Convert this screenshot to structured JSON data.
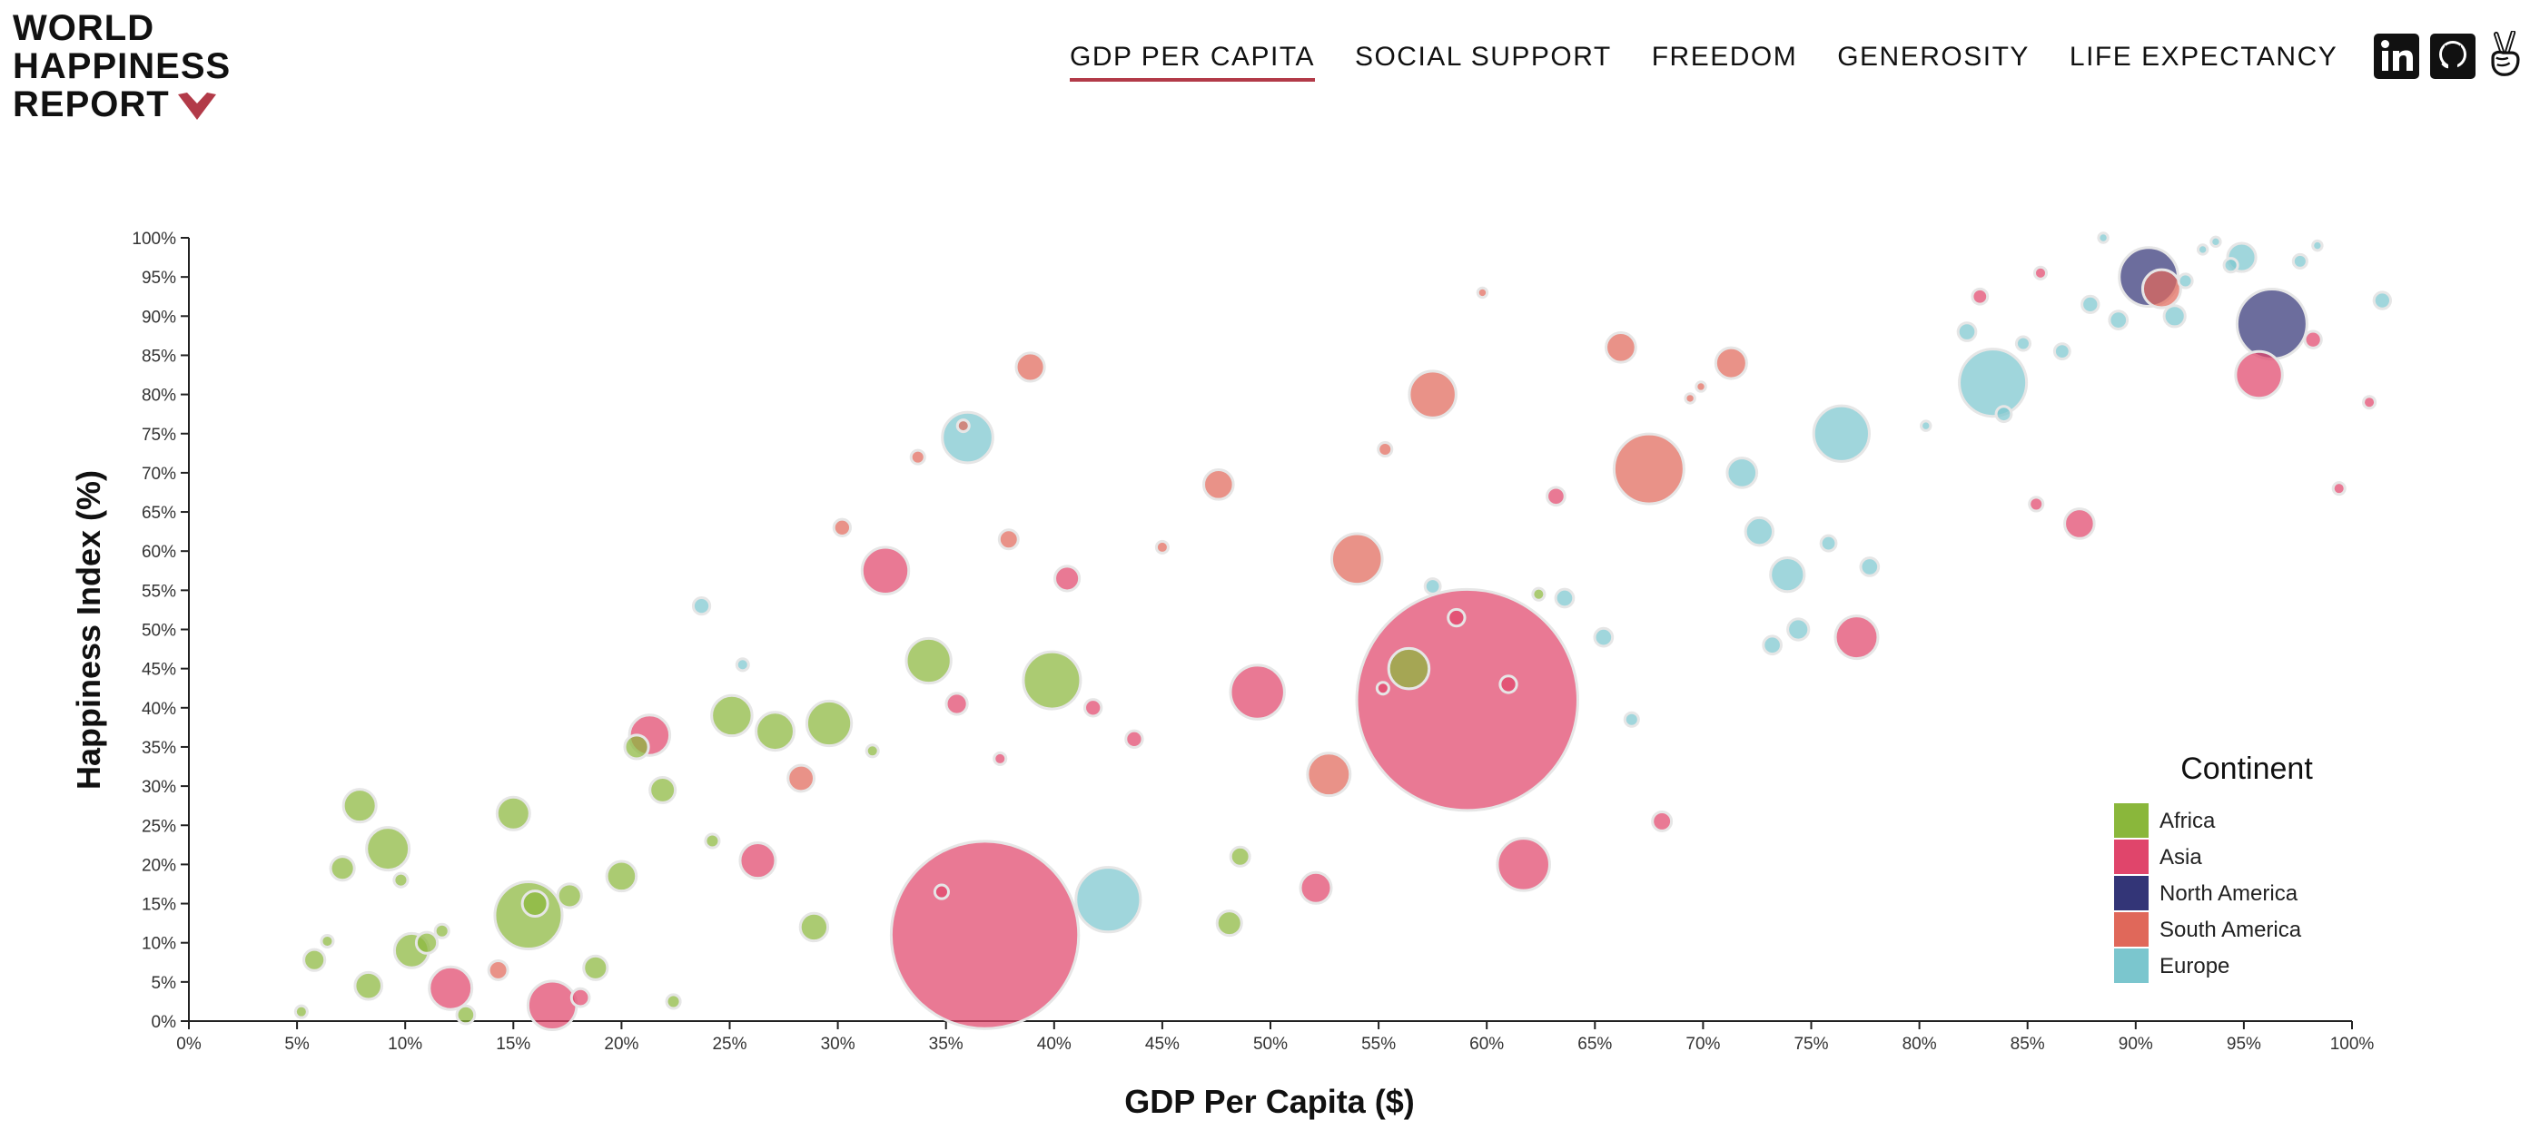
{
  "logo": {
    "lines": [
      "WORLD",
      "HAPPINESS",
      "REPORT"
    ]
  },
  "nav": {
    "items": [
      {
        "label": "GDP PER CAPITA",
        "active": true
      },
      {
        "label": "SOCIAL SUPPORT",
        "active": false
      },
      {
        "label": "FREEDOM",
        "active": false
      },
      {
        "label": "GENEROSITY",
        "active": false
      },
      {
        "label": "LIFE EXPECTANCY",
        "active": false
      }
    ]
  },
  "social": {
    "icons": [
      "linkedin-icon",
      "github-icon",
      "peace-hand-icon"
    ]
  },
  "colors": {
    "accent": "#b23a48",
    "Africa": "#8ab73b",
    "Asia": "#e0456b",
    "North America": "#333577",
    "South America": "#e0685a",
    "Europe": "#7bc6ce"
  },
  "chart_data": {
    "type": "scatter",
    "xlabel": "GDP Per Capita ($)",
    "ylabel": "Happiness Index (%)",
    "xlim": [
      0,
      100
    ],
    "ylim": [
      0,
      100
    ],
    "x_ticks": [
      "0%",
      "5%",
      "10%",
      "15%",
      "20%",
      "25%",
      "30%",
      "35%",
      "40%",
      "45%",
      "50%",
      "55%",
      "60%",
      "65%",
      "70%",
      "75%",
      "80%",
      "85%",
      "90%",
      "95%",
      "100%"
    ],
    "y_ticks": [
      "0%",
      "5%",
      "10%",
      "15%",
      "20%",
      "25%",
      "30%",
      "35%",
      "40%",
      "45%",
      "50%",
      "55%",
      "60%",
      "65%",
      "70%",
      "75%",
      "80%",
      "85%",
      "90%",
      "95%",
      "100%"
    ],
    "legend": {
      "title": "Continent",
      "position": "bottom-right",
      "entries": [
        "Africa",
        "Asia",
        "North America",
        "South America",
        "Europe"
      ]
    },
    "grid": false,
    "size_encoding": "population",
    "series": [
      {
        "name": "Africa",
        "points": [
          {
            "x": 5.2,
            "y": 1.2,
            "s": 2
          },
          {
            "x": 5.8,
            "y": 7.8,
            "s": 9
          },
          {
            "x": 6.4,
            "y": 10.2,
            "s": 2
          },
          {
            "x": 7.1,
            "y": 19.5,
            "s": 12
          },
          {
            "x": 7.9,
            "y": 27.5,
            "s": 25
          },
          {
            "x": 8.3,
            "y": 4.5,
            "s": 16
          },
          {
            "x": 9.2,
            "y": 22,
            "s": 45
          },
          {
            "x": 9.8,
            "y": 18,
            "s": 3
          },
          {
            "x": 10.3,
            "y": 9,
            "s": 28
          },
          {
            "x": 11,
            "y": 10,
            "s": 9
          },
          {
            "x": 11.7,
            "y": 11.5,
            "s": 3
          },
          {
            "x": 12.8,
            "y": 0.8,
            "s": 6
          },
          {
            "x": 15.7,
            "y": 13.5,
            "s": 120
          },
          {
            "x": 16,
            "y": 15,
            "s": 14
          },
          {
            "x": 15,
            "y": 26.5,
            "s": 25
          },
          {
            "x": 17.6,
            "y": 16,
            "s": 12
          },
          {
            "x": 18.8,
            "y": 6.8,
            "s": 12
          },
          {
            "x": 20,
            "y": 18.5,
            "s": 20
          },
          {
            "x": 20.7,
            "y": 35,
            "s": 12
          },
          {
            "x": 21.9,
            "y": 29.5,
            "s": 14
          },
          {
            "x": 22.4,
            "y": 2.5,
            "s": 3
          },
          {
            "x": 24.2,
            "y": 23,
            "s": 3
          },
          {
            "x": 25.1,
            "y": 39,
            "s": 40
          },
          {
            "x": 27.1,
            "y": 37,
            "s": 35
          },
          {
            "x": 28.9,
            "y": 12,
            "s": 17
          },
          {
            "x": 29.6,
            "y": 38,
            "s": 50
          },
          {
            "x": 31.6,
            "y": 34.5,
            "s": 2
          },
          {
            "x": 34.2,
            "y": 46,
            "s": 50
          },
          {
            "x": 39.9,
            "y": 43.5,
            "s": 85
          },
          {
            "x": 48.1,
            "y": 12.5,
            "s": 13
          },
          {
            "x": 48.6,
            "y": 21,
            "s": 7
          },
          {
            "x": 56.4,
            "y": 45,
            "s": 40
          },
          {
            "x": 62.4,
            "y": 54.5,
            "s": 2
          }
        ]
      },
      {
        "name": "Asia",
        "points": [
          {
            "x": 12.1,
            "y": 4.2,
            "s": 45
          },
          {
            "x": 16.8,
            "y": 2,
            "s": 60
          },
          {
            "x": 18.1,
            "y": 3,
            "s": 6
          },
          {
            "x": 21.3,
            "y": 36.5,
            "s": 40
          },
          {
            "x": 26.3,
            "y": 20.5,
            "s": 30
          },
          {
            "x": 32.2,
            "y": 57.5,
            "s": 55
          },
          {
            "x": 34.8,
            "y": 16.5,
            "s": 3
          },
          {
            "x": 35.5,
            "y": 40.5,
            "s": 9
          },
          {
            "x": 36.8,
            "y": 11,
            "s": 1000
          },
          {
            "x": 37.5,
            "y": 33.5,
            "s": 2
          },
          {
            "x": 40.6,
            "y": 56.5,
            "s": 13
          },
          {
            "x": 41.8,
            "y": 40,
            "s": 5
          },
          {
            "x": 43.7,
            "y": 36,
            "s": 5
          },
          {
            "x": 49.4,
            "y": 42,
            "s": 75
          },
          {
            "x": 52.1,
            "y": 17,
            "s": 22
          },
          {
            "x": 55.2,
            "y": 42.5,
            "s": 2
          },
          {
            "x": 58.6,
            "y": 51.5,
            "s": 5
          },
          {
            "x": 59.1,
            "y": 41,
            "s": 1400
          },
          {
            "x": 61,
            "y": 43,
            "s": 5
          },
          {
            "x": 61.7,
            "y": 20,
            "s": 70
          },
          {
            "x": 63.2,
            "y": 67,
            "s": 6
          },
          {
            "x": 68.1,
            "y": 25.5,
            "s": 7
          },
          {
            "x": 77.1,
            "y": 49,
            "s": 45
          },
          {
            "x": 82.8,
            "y": 92.5,
            "s": 4
          },
          {
            "x": 85.6,
            "y": 95.5,
            "s": 2
          },
          {
            "x": 85.4,
            "y": 66,
            "s": 3
          },
          {
            "x": 87.4,
            "y": 63.5,
            "s": 20
          },
          {
            "x": 95.7,
            "y": 82.5,
            "s": 55
          },
          {
            "x": 98.2,
            "y": 87,
            "s": 5
          },
          {
            "x": 99.4,
            "y": 68,
            "s": 2
          },
          {
            "x": 100.8,
            "y": 79,
            "s": 2
          }
        ]
      },
      {
        "name": "North America",
        "points": [
          {
            "x": 90.6,
            "y": 95,
            "s": 90
          },
          {
            "x": 96.3,
            "y": 89,
            "s": 130
          }
        ]
      },
      {
        "name": "South America",
        "points": [
          {
            "x": 14.3,
            "y": 6.5,
            "s": 7
          },
          {
            "x": 28.3,
            "y": 31,
            "s": 15
          },
          {
            "x": 30.2,
            "y": 63,
            "s": 5
          },
          {
            "x": 33.7,
            "y": 72,
            "s": 3
          },
          {
            "x": 35.8,
            "y": 76,
            "s": 2
          },
          {
            "x": 38.9,
            "y": 83.5,
            "s": 18
          },
          {
            "x": 37.9,
            "y": 61.5,
            "s": 7
          },
          {
            "x": 45,
            "y": 60.5,
            "s": 2
          },
          {
            "x": 47.6,
            "y": 68.5,
            "s": 20
          },
          {
            "x": 52.7,
            "y": 31.5,
            "s": 45
          },
          {
            "x": 54,
            "y": 59,
            "s": 65
          },
          {
            "x": 55.3,
            "y": 73,
            "s": 3
          },
          {
            "x": 57.5,
            "y": 80,
            "s": 55
          },
          {
            "x": 59.8,
            "y": 93,
            "s": 1
          },
          {
            "x": 66.2,
            "y": 86,
            "s": 20
          },
          {
            "x": 67.5,
            "y": 70.5,
            "s": 130
          },
          {
            "x": 69.4,
            "y": 79.5,
            "s": 1
          },
          {
            "x": 69.9,
            "y": 81,
            "s": 1
          },
          {
            "x": 71.3,
            "y": 84,
            "s": 22
          },
          {
            "x": 91.2,
            "y": 93.5,
            "s": 35
          }
        ]
      },
      {
        "name": "Europe",
        "points": [
          {
            "x": 23.7,
            "y": 53,
            "s": 5
          },
          {
            "x": 25.6,
            "y": 45.5,
            "s": 2
          },
          {
            "x": 36,
            "y": 74.5,
            "s": 65
          },
          {
            "x": 42.5,
            "y": 15.5,
            "s": 110
          },
          {
            "x": 57.5,
            "y": 55.5,
            "s": 4
          },
          {
            "x": 63.6,
            "y": 54,
            "s": 6
          },
          {
            "x": 65.4,
            "y": 49,
            "s": 6
          },
          {
            "x": 66.7,
            "y": 38.5,
            "s": 3
          },
          {
            "x": 71.8,
            "y": 70,
            "s": 20
          },
          {
            "x": 72.6,
            "y": 62.5,
            "s": 17
          },
          {
            "x": 73.2,
            "y": 48,
            "s": 6
          },
          {
            "x": 73.9,
            "y": 57,
            "s": 27
          },
          {
            "x": 74.4,
            "y": 50,
            "s": 9
          },
          {
            "x": 75.8,
            "y": 61,
            "s": 4
          },
          {
            "x": 76.4,
            "y": 75,
            "s": 80
          },
          {
            "x": 77.7,
            "y": 58,
            "s": 6
          },
          {
            "x": 80.3,
            "y": 76,
            "s": 1
          },
          {
            "x": 82.2,
            "y": 88,
            "s": 6
          },
          {
            "x": 83.4,
            "y": 81.5,
            "s": 120
          },
          {
            "x": 83.9,
            "y": 77.5,
            "s": 4
          },
          {
            "x": 84.8,
            "y": 86.5,
            "s": 3
          },
          {
            "x": 86.6,
            "y": 85.5,
            "s": 4
          },
          {
            "x": 87.9,
            "y": 91.5,
            "s": 5
          },
          {
            "x": 88.5,
            "y": 100,
            "s": 1
          },
          {
            "x": 89.2,
            "y": 89.5,
            "s": 6
          },
          {
            "x": 91.8,
            "y": 90,
            "s": 9
          },
          {
            "x": 92.3,
            "y": 94.5,
            "s": 3
          },
          {
            "x": 93.1,
            "y": 98.5,
            "s": 1
          },
          {
            "x": 93.7,
            "y": 99.5,
            "s": 1
          },
          {
            "x": 94.4,
            "y": 96.5,
            "s": 3
          },
          {
            "x": 94.9,
            "y": 97.5,
            "s": 18
          },
          {
            "x": 97.6,
            "y": 97,
            "s": 3
          },
          {
            "x": 98.4,
            "y": 99,
            "s": 1
          },
          {
            "x": 101.4,
            "y": 92,
            "s": 5
          }
        ]
      }
    ]
  }
}
